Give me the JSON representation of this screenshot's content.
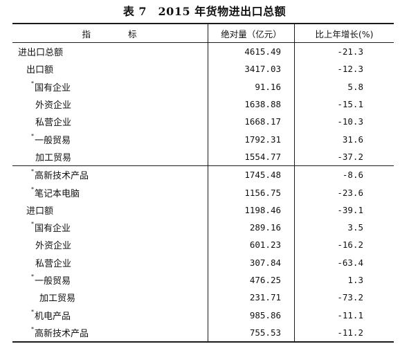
{
  "title": "表 7　2015 年货物进出口总额",
  "header": {
    "indicator_a": "指",
    "indicator_b": "标",
    "absolute": "绝对量（亿元）",
    "growth": "比上年增长(%)"
  },
  "marker": "*",
  "rows": [
    {
      "label": "进出口总额",
      "value": "4615.49",
      "growth": "-21.3"
    },
    {
      "label": "出口额",
      "value": "3417.03",
      "growth": "-12.3"
    },
    {
      "label": "国有企业",
      "value": "91.16",
      "growth": "5.8"
    },
    {
      "label": "外资企业",
      "value": "1638.88",
      "growth": "-15.1"
    },
    {
      "label": "私营企业",
      "value": "1668.17",
      "growth": "-10.3"
    },
    {
      "label": "一般贸易",
      "value": "1792.31",
      "growth": "31.6"
    },
    {
      "label": "加工贸易",
      "value": "1554.77",
      "growth": "-37.2"
    },
    {
      "label": "高新技术产品",
      "value": "1745.48",
      "growth": "-8.6"
    },
    {
      "label": "笔记本电脑",
      "value": "1156.75",
      "growth": "-23.6"
    },
    {
      "label": "进口额",
      "value": "1198.46",
      "growth": "-39.1"
    },
    {
      "label": "国有企业",
      "value": "289.16",
      "growth": "3.5"
    },
    {
      "label": "外资企业",
      "value": "601.23",
      "growth": "-16.2"
    },
    {
      "label": "私营企业",
      "value": "307.84",
      "growth": "-63.4"
    },
    {
      "label": "一般贸易",
      "value": "476.25",
      "growth": "1.3"
    },
    {
      "label": "加工贸易",
      "value": "231.71",
      "growth": "-73.2"
    },
    {
      "label": "机电产品",
      "value": "985.86",
      "growth": "-11.1"
    },
    {
      "label": "高新技术产品",
      "value": "755.53",
      "growth": "-11.2"
    }
  ]
}
